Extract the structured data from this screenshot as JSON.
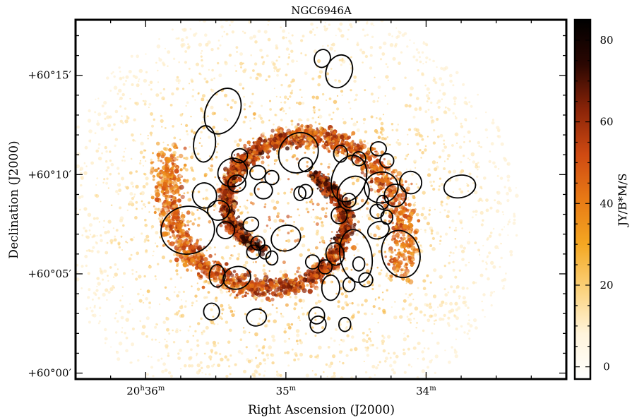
{
  "chart_data": {
    "type": "heatmap",
    "title": "NGC6946A",
    "xlabel": "Right Ascension (J2000)",
    "ylabel": "Declination (J2000)",
    "x_ticks": [
      {
        "value": 36,
        "label_main": "20",
        "label_sup_h": "h",
        "label_num": "36",
        "label_sup_m": "m"
      },
      {
        "value": 35,
        "label_main": "",
        "label_sup_h": "",
        "label_num": "35",
        "label_sup_m": "m"
      },
      {
        "value": 34,
        "label_main": "",
        "label_sup_h": "",
        "label_num": "34",
        "label_sup_m": "m"
      }
    ],
    "y_ticks": [
      {
        "value": 15,
        "label": "+60°15′"
      },
      {
        "value": 10,
        "label": "+60°10′"
      },
      {
        "value": 5,
        "label": "+60°05′"
      },
      {
        "value": 0,
        "label": "+60°00′"
      }
    ],
    "xlim": [
      36.5,
      33.0
    ],
    "ylim": [
      -0.3,
      17.8
    ],
    "colorbar": {
      "label": "JY/B*M/S",
      "ticks": [
        0,
        20,
        40,
        60,
        80
      ],
      "range": [
        -3,
        85
      ],
      "colors": [
        "#ffffff",
        "#fff4dc",
        "#fbd27c",
        "#f4a722",
        "#e87a15",
        "#cf4a12",
        "#8a2408",
        "#2b0702",
        "#000000"
      ]
    },
    "grid": false,
    "galaxy_center": [
      35.0,
      8.1
    ],
    "ellipses": [
      {
        "ra": 34.74,
        "dec": 15.85,
        "a": 0.065,
        "b": 0.4,
        "angle": 20
      },
      {
        "ra": 34.62,
        "dec": 15.2,
        "a": 0.12,
        "b": 0.65,
        "angle": 20
      },
      {
        "ra": 35.45,
        "dec": 13.2,
        "a": 0.17,
        "b": 0.85,
        "angle": 25
      },
      {
        "ra": 35.58,
        "dec": 11.55,
        "a": 0.13,
        "b": 0.55,
        "angle": 5
      },
      {
        "ra": 34.91,
        "dec": 11.1,
        "a": 0.15,
        "b": 0.95,
        "angle": 40
      },
      {
        "ra": 34.55,
        "dec": 9.8,
        "a": 0.12,
        "b": 1.2,
        "angle": -70
      },
      {
        "ra": 34.52,
        "dec": 9.05,
        "a": 0.11,
        "b": 0.9,
        "angle": -60
      },
      {
        "ra": 34.32,
        "dec": 9.35,
        "a": 0.11,
        "b": 0.85,
        "angle": -10
      },
      {
        "ra": 34.11,
        "dec": 9.6,
        "a": 0.08,
        "b": 0.55,
        "angle": -20
      },
      {
        "ra": 34.22,
        "dec": 8.95,
        "a": 0.08,
        "b": 0.55,
        "angle": 0
      },
      {
        "ra": 33.76,
        "dec": 9.4,
        "a": 0.08,
        "b": 0.8,
        "angle": -10
      },
      {
        "ra": 35.58,
        "dec": 8.95,
        "a": 0.09,
        "b": 0.6,
        "angle": -20
      },
      {
        "ra": 35.48,
        "dec": 8.2,
        "a": 0.07,
        "b": 0.55,
        "angle": -10
      },
      {
        "ra": 35.7,
        "dec": 7.2,
        "a": 0.17,
        "b": 1.35,
        "angle": -10
      },
      {
        "ra": 35.0,
        "dec": 6.8,
        "a": 0.09,
        "b": 0.75,
        "angle": -20
      },
      {
        "ra": 34.5,
        "dec": 5.9,
        "a": 0.19,
        "b": 0.8,
        "angle": -10
      },
      {
        "ra": 34.18,
        "dec": 6.0,
        "a": 0.17,
        "b": 0.95,
        "angle": -15
      },
      {
        "ra": 34.34,
        "dec": 7.2,
        "a": 0.06,
        "b": 0.55,
        "angle": -20
      },
      {
        "ra": 35.35,
        "dec": 9.55,
        "a": 0.06,
        "b": 0.45,
        "angle": -10
      },
      {
        "ra": 35.33,
        "dec": 10.95,
        "a": 0.05,
        "b": 0.4,
        "angle": 0
      },
      {
        "ra": 35.38,
        "dec": 10.1,
        "a": 0.1,
        "b": 0.75,
        "angle": -30
      },
      {
        "ra": 35.2,
        "dec": 10.1,
        "a": 0.05,
        "b": 0.4,
        "angle": -10
      },
      {
        "ra": 35.1,
        "dec": 9.85,
        "a": 0.05,
        "b": 0.35,
        "angle": 0
      },
      {
        "ra": 35.16,
        "dec": 9.2,
        "a": 0.06,
        "b": 0.45,
        "angle": 0
      },
      {
        "ra": 35.25,
        "dec": 7.5,
        "a": 0.05,
        "b": 0.4,
        "angle": -20
      },
      {
        "ra": 35.43,
        "dec": 7.2,
        "a": 0.06,
        "b": 0.45,
        "angle": 0
      },
      {
        "ra": 34.61,
        "dec": 11.05,
        "a": 0.06,
        "b": 0.35,
        "angle": 0
      },
      {
        "ra": 34.86,
        "dec": 10.5,
        "a": 0.05,
        "b": 0.35,
        "angle": 0
      },
      {
        "ra": 34.86,
        "dec": 9.15,
        "a": 0.05,
        "b": 0.35,
        "angle": 0
      },
      {
        "ra": 34.55,
        "dec": 8.7,
        "a": 0.05,
        "b": 0.35,
        "angle": 0
      },
      {
        "ra": 34.48,
        "dec": 10.8,
        "a": 0.05,
        "b": 0.35,
        "angle": 10
      },
      {
        "ra": 34.34,
        "dec": 11.3,
        "a": 0.05,
        "b": 0.4,
        "angle": 0
      },
      {
        "ra": 34.28,
        "dec": 10.7,
        "a": 0.05,
        "b": 0.35,
        "angle": 0
      },
      {
        "ra": 34.35,
        "dec": 8.15,
        "a": 0.05,
        "b": 0.35,
        "angle": 0
      },
      {
        "ra": 34.62,
        "dec": 7.95,
        "a": 0.06,
        "b": 0.4,
        "angle": 0
      },
      {
        "ra": 34.28,
        "dec": 7.85,
        "a": 0.05,
        "b": 0.3,
        "angle": 0
      },
      {
        "ra": 34.31,
        "dec": 8.6,
        "a": 0.05,
        "b": 0.3,
        "angle": 0
      },
      {
        "ra": 34.65,
        "dec": 6.0,
        "a": 0.08,
        "b": 0.45,
        "angle": -10
      },
      {
        "ra": 34.72,
        "dec": 5.35,
        "a": 0.05,
        "b": 0.35,
        "angle": 0
      },
      {
        "ra": 34.81,
        "dec": 5.6,
        "a": 0.05,
        "b": 0.35,
        "angle": 0
      },
      {
        "ra": 35.2,
        "dec": 6.55,
        "a": 0.05,
        "b": 0.35,
        "angle": 0
      },
      {
        "ra": 35.23,
        "dec": 6.1,
        "a": 0.05,
        "b": 0.35,
        "angle": 0
      },
      {
        "ra": 35.15,
        "dec": 6.1,
        "a": 0.05,
        "b": 0.3,
        "angle": 0
      },
      {
        "ra": 35.1,
        "dec": 5.8,
        "a": 0.05,
        "b": 0.3,
        "angle": 0
      },
      {
        "ra": 34.9,
        "dec": 9.05,
        "a": 0.05,
        "b": 0.3,
        "angle": 0
      },
      {
        "ra": 34.48,
        "dec": 5.5,
        "a": 0.05,
        "b": 0.3,
        "angle": 0
      },
      {
        "ra": 35.49,
        "dec": 4.9,
        "a": 0.08,
        "b": 0.4,
        "angle": 0
      },
      {
        "ra": 35.35,
        "dec": 4.8,
        "a": 0.08,
        "b": 0.7,
        "angle": -15
      },
      {
        "ra": 34.68,
        "dec": 4.3,
        "a": 0.09,
        "b": 0.45,
        "angle": 0
      },
      {
        "ra": 34.55,
        "dec": 4.45,
        "a": 0.05,
        "b": 0.3,
        "angle": 0
      },
      {
        "ra": 34.43,
        "dec": 4.7,
        "a": 0.05,
        "b": 0.35,
        "angle": -10
      },
      {
        "ra": 35.53,
        "dec": 3.1,
        "a": 0.06,
        "b": 0.4,
        "angle": 0
      },
      {
        "ra": 35.21,
        "dec": 2.8,
        "a": 0.06,
        "b": 0.5,
        "angle": -10
      },
      {
        "ra": 34.78,
        "dec": 2.9,
        "a": 0.06,
        "b": 0.4,
        "angle": 0
      },
      {
        "ra": 34.77,
        "dec": 2.45,
        "a": 0.06,
        "b": 0.4,
        "angle": 15
      },
      {
        "ra": 34.58,
        "dec": 2.45,
        "a": 0.05,
        "b": 0.3,
        "angle": 0
      }
    ]
  }
}
